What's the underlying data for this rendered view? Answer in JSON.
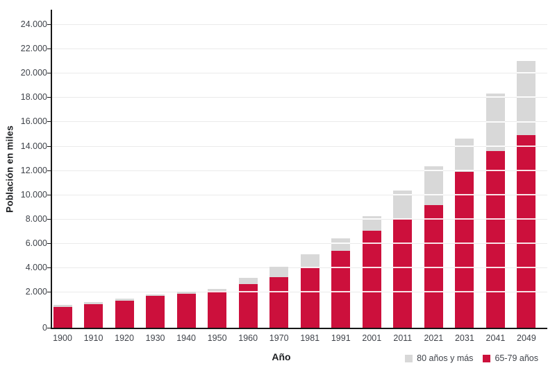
{
  "chart_data": {
    "type": "bar",
    "stacked": true,
    "title": "",
    "xlabel": "Año",
    "ylabel": "Población en miles",
    "categories": [
      "1900",
      "1910",
      "1920",
      "1930",
      "1940",
      "1950",
      "1960",
      "1970",
      "1981",
      "1991",
      "2001",
      "2011",
      "2021",
      "2031",
      "2041",
      "2049"
    ],
    "series": [
      {
        "name": "65-79 años",
        "color": "#cc103c",
        "values": [
          1150,
          1300,
          1500,
          1750,
          1890,
          2050,
          2600,
          3200,
          4000,
          5350,
          7000,
          8000,
          9100,
          11850,
          13600,
          14900
        ]
      },
      {
        "name": "80 años y más",
        "color": "#d8d8d8",
        "values": [
          100,
          100,
          120,
          100,
          90,
          170,
          550,
          850,
          1050,
          1050,
          1200,
          2300,
          3200,
          2750,
          4700,
          6100
        ]
      }
    ],
    "totals": [
      1250,
      1400,
      1620,
      1850,
      1980,
      2220,
      3150,
      4050,
      5050,
      6400,
      8200,
      10300,
      12300,
      14600,
      18300,
      21000
    ],
    "ylim": [
      0,
      24000
    ],
    "ytick_interval": 2000,
    "ytick_labels": [
      "0",
      "2.000",
      "4.000",
      "6.000",
      "8.000",
      "10.000",
      "12.000",
      "14.000",
      "16.000",
      "18.000",
      "20.000",
      "22.000",
      "24.000"
    ],
    "grid": "horizontal",
    "legend_position": "bottom-right"
  },
  "legend": {
    "items": [
      {
        "label": "80 años y más",
        "color": "#d8d8d8"
      },
      {
        "label": "65-79 años",
        "color": "#cc103c"
      }
    ]
  },
  "axis_colors": {
    "axis_line": "#161616",
    "gridline": "#eaeaea",
    "tick_text": "#3f434a",
    "title_text": "#1d1f22"
  }
}
